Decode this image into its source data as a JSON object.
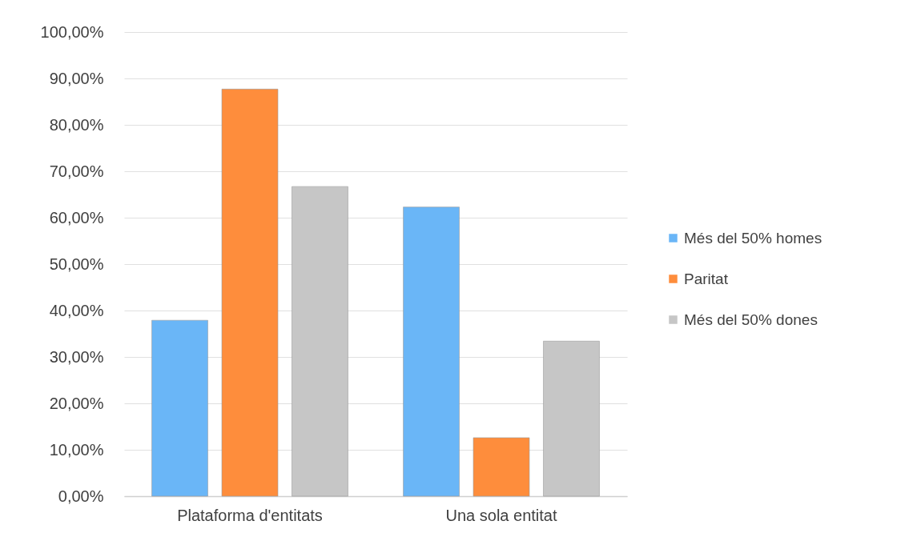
{
  "chart_data": {
    "type": "bar",
    "categories": [
      "Plataforma d'entitats",
      "Una sola entitat"
    ],
    "series": [
      {
        "name": "Més del 50% homes",
        "color": "#6ab6f7",
        "values": [
          37.9,
          62.3
        ]
      },
      {
        "name": "Paritat",
        "color": "#fe8d3c",
        "values": [
          87.7,
          12.6
        ]
      },
      {
        "name": "Més del 50% dones",
        "color": "#c6c6c6",
        "values": [
          66.7,
          33.4
        ]
      }
    ],
    "ylim": [
      0,
      100
    ],
    "yticks": [
      {
        "value": 0,
        "label": "0,00%"
      },
      {
        "value": 10,
        "label": "10,00%"
      },
      {
        "value": 20,
        "label": "20,00%"
      },
      {
        "value": 30,
        "label": "30,00%"
      },
      {
        "value": 40,
        "label": "40,00%"
      },
      {
        "value": 50,
        "label": "50,00%"
      },
      {
        "value": 60,
        "label": "60,00%"
      },
      {
        "value": 70,
        "label": "70,00%"
      },
      {
        "value": 80,
        "label": "80,00%"
      },
      {
        "value": 90,
        "label": "90,00%"
      },
      {
        "value": 100,
        "label": "100,00%"
      }
    ],
    "grid": "y",
    "legend": "right"
  }
}
